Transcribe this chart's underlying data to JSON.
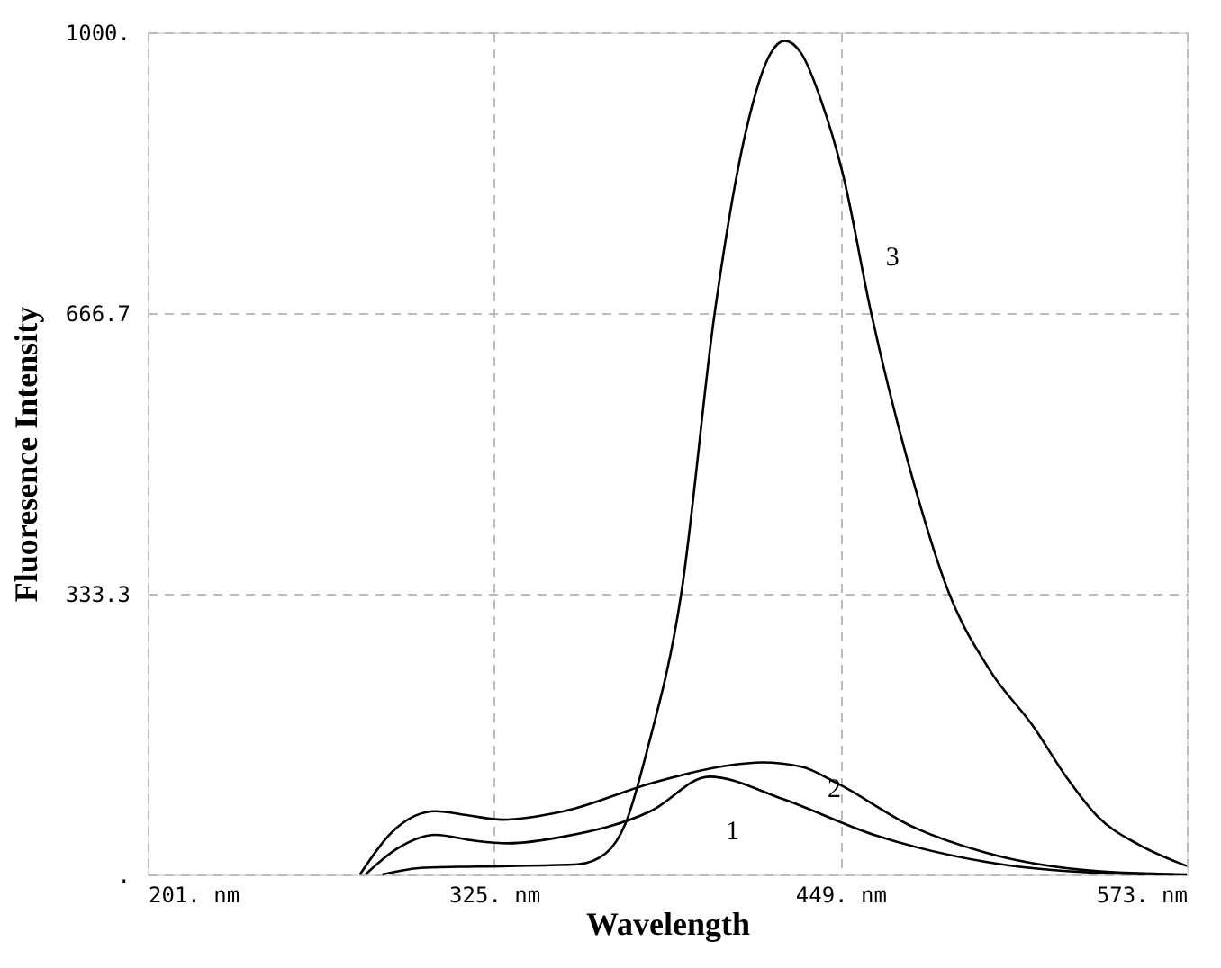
{
  "chart_data": {
    "type": "line",
    "xlabel": "Wavelength",
    "ylabel": "Fluoresence Intensity",
    "xlim": [
      201,
      573
    ],
    "ylim": [
      0,
      1000
    ],
    "xticks": [
      {
        "value": 201,
        "label": "201. nm"
      },
      {
        "value": 325,
        "label": "325. nm"
      },
      {
        "value": 449,
        "label": "449. nm"
      },
      {
        "value": 573,
        "label": "573. nm"
      }
    ],
    "yticks": [
      {
        "value": 0,
        "label": "."
      },
      {
        "value": 333.3,
        "label": "333.3"
      },
      {
        "value": 666.7,
        "label": "666.7"
      },
      {
        "value": 1000,
        "label": "1000."
      }
    ],
    "grid": true,
    "marker": "none",
    "line_style": "solid",
    "series": [
      {
        "name": "1",
        "color": "#000000",
        "x": [
          279,
          290,
          304,
          318,
          330,
          350,
          381,
          402,
          428,
          461,
          501,
          541,
          568
        ],
        "values": [
          0,
          30,
          47,
          40,
          37,
          45,
          75,
          116,
          90,
          47,
          15,
          2,
          0
        ]
      },
      {
        "name": "2",
        "color": "#000000",
        "x": [
          277,
          290,
          304,
          316,
          328,
          350,
          381,
          408,
          421,
          435,
          448,
          474,
          501,
          541,
          573
        ],
        "values": [
          0,
          55,
          75,
          70,
          65,
          75,
          108,
          129,
          133,
          128,
          108,
          58,
          26,
          4,
          0
        ]
      },
      {
        "name": "3",
        "color": "#000000",
        "x": [
          285,
          300,
          330,
          355,
          365,
          372,
          380,
          392,
          404,
          415,
          424,
          429,
          435,
          442,
          450,
          460,
          474,
          488,
          503,
          518,
          530,
          541,
          556,
          573
        ],
        "values": [
          0,
          8,
          10,
          12,
          25,
          60,
          150,
          333,
          667,
          880,
          975,
          990,
          975,
          920,
          830,
          667,
          480,
          333,
          240,
          176,
          115,
          69,
          35,
          10
        ]
      }
    ]
  }
}
